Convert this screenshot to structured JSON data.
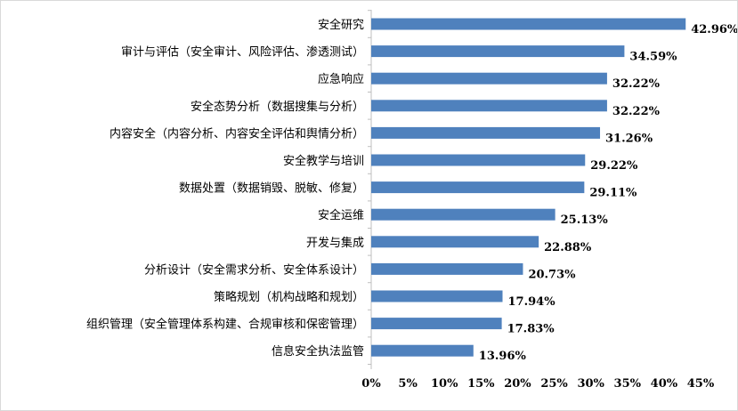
{
  "chart_data": {
    "type": "bar",
    "orientation": "horizontal",
    "title": "",
    "xlabel": "",
    "ylabel": "",
    "categories": [
      "安全研究",
      "审计与评估（安全审计、风险评估、渗透测试）",
      "应急响应",
      "安全态势分析（数据搜集与分析）",
      "内容安全（内容分析、内容安全评估和舆情分析）",
      "安全教学与培训",
      "数据处置（数据销毁、脱敏、修复）",
      "安全运维",
      "开发与集成",
      "分析设计（安全需求分析、安全体系设计）",
      "策略规划（机构战略和规划）",
      "组织管理（安全管理体系构建、合规审核和保密管理）",
      "信息安全执法监管"
    ],
    "values": [
      42.96,
      34.59,
      32.22,
      32.22,
      31.26,
      29.22,
      29.11,
      25.13,
      22.88,
      20.73,
      17.94,
      17.83,
      13.96
    ],
    "value_labels": [
      "42.96%",
      "34.59%",
      "32.22%",
      "32.22%",
      "31.26%",
      "29.22%",
      "29.11%",
      "25.13%",
      "22.88%",
      "20.73%",
      "17.94%",
      "17.83%",
      "13.96%"
    ],
    "xlim": [
      0,
      45
    ],
    "x_ticks": [
      0,
      5,
      10,
      15,
      20,
      25,
      30,
      35,
      40,
      45
    ],
    "x_tick_labels": [
      "0%",
      "5%",
      "10%",
      "15%",
      "20%",
      "25%",
      "30%",
      "35%",
      "40%",
      "45%"
    ],
    "bar_color": "#4f81bd",
    "grid": false,
    "legend": "none"
  }
}
